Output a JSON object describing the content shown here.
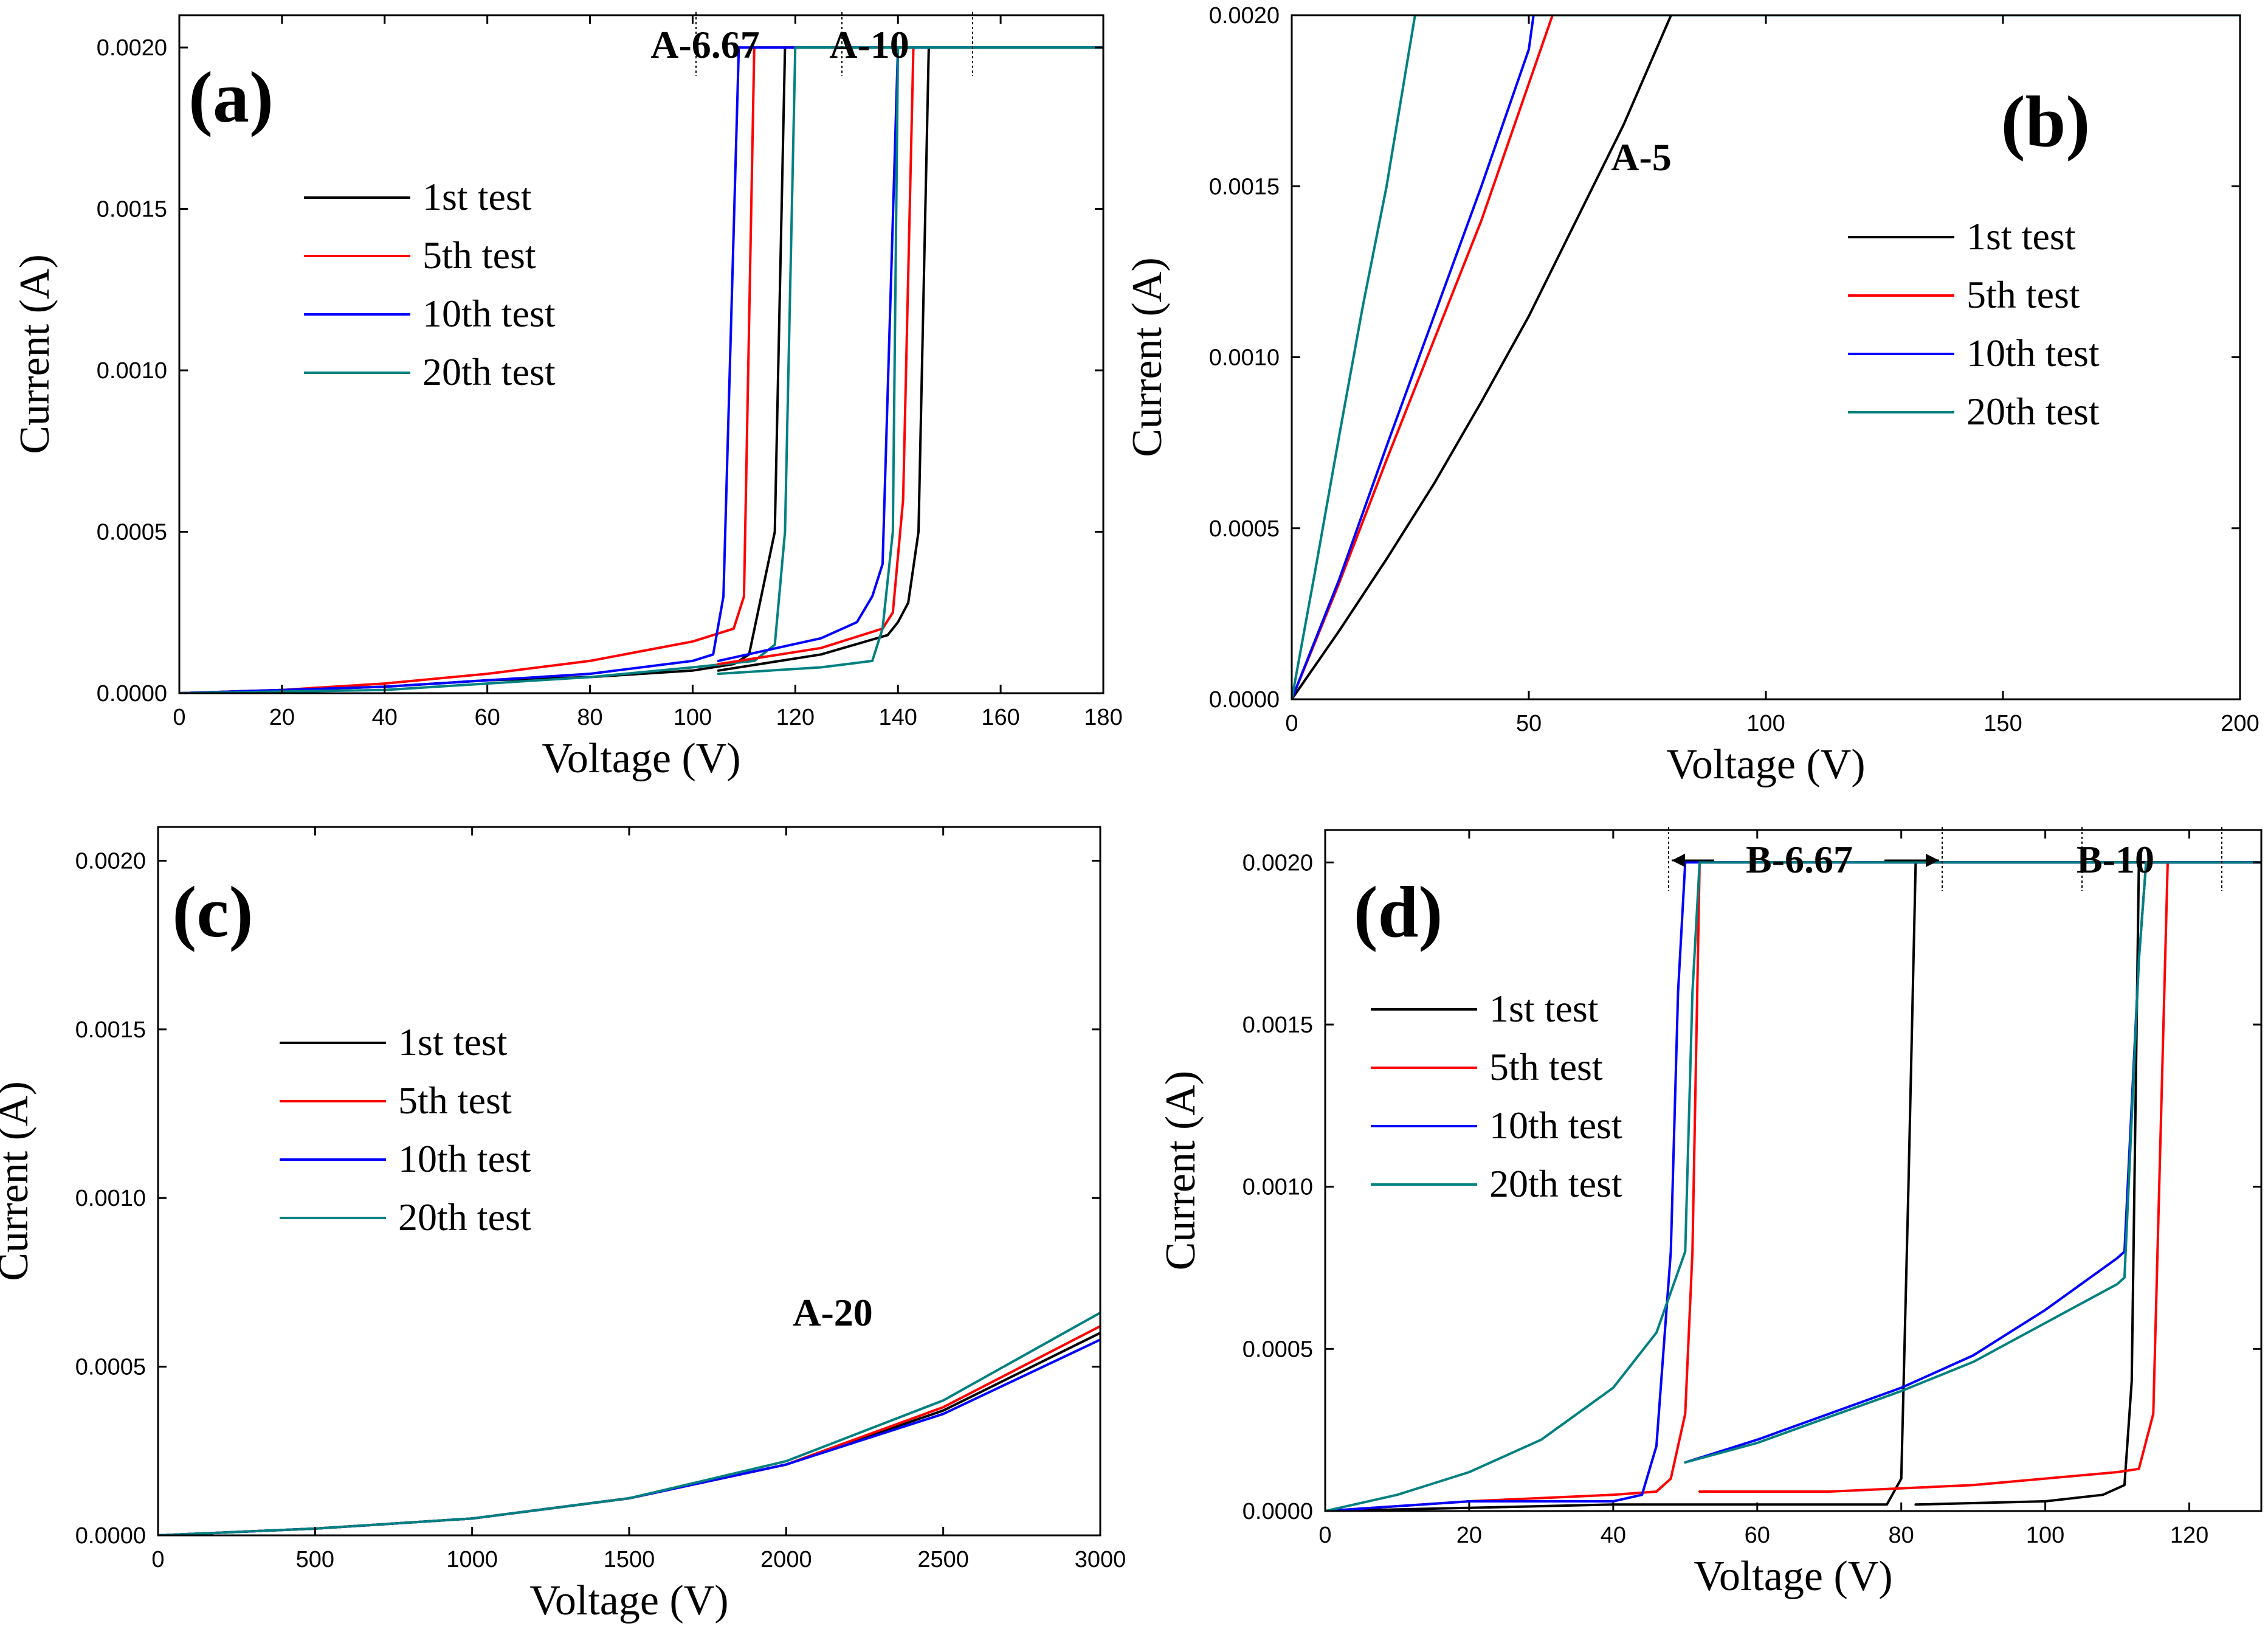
{
  "colors": {
    "1st": "#000000",
    "5th": "#ff0000",
    "10th": "#0000ff",
    "20th": "#008080"
  },
  "chart_data": [
    {
      "id": "a",
      "type": "line",
      "panel_label": "(a)",
      "xlabel": "Voltage (V)",
      "ylabel": "Current (A)",
      "xlim": [
        0,
        180
      ],
      "ylim": [
        0,
        0.0021
      ],
      "xticks": [
        "0",
        "20",
        "40",
        "60",
        "80",
        "100",
        "120",
        "140",
        "160",
        "180"
      ],
      "yticks": [
        "0.0000",
        "0.0005",
        "0.0010",
        "0.0015",
        "0.0020"
      ],
      "legend_position": "upper-left",
      "annotations": [
        {
          "text": "A-6.67",
          "x": 120,
          "y": 0.0021
        },
        {
          "text": "A-10",
          "x": 144,
          "y": 0.0021
        }
      ],
      "series": [
        {
          "name": "1st test",
          "color_key": "1st",
          "x": [
            0,
            20,
            40,
            60,
            80,
            100,
            108,
            111,
            116,
            118,
            180
          ],
          "y": [
            0,
            1e-05,
            2e-05,
            4e-05,
            5e-05,
            7e-05,
            9e-05,
            0.00012,
            0.0005,
            0.002,
            0.002
          ]
        },
        {
          "name": "5th test",
          "color_key": "5th",
          "x": [
            0,
            20,
            40,
            60,
            80,
            100,
            108,
            110,
            112,
            116,
            180
          ],
          "y": [
            0,
            1e-05,
            3e-05,
            6e-05,
            0.0001,
            0.00016,
            0.0002,
            0.0003,
            0.002,
            0.002,
            0.002
          ]
        },
        {
          "name": "10th test",
          "color_key": "10th",
          "x": [
            0,
            20,
            40,
            60,
            80,
            100,
            104,
            106,
            109,
            113,
            180
          ],
          "y": [
            0,
            1e-05,
            2e-05,
            4e-05,
            6e-05,
            0.0001,
            0.00012,
            0.0003,
            0.002,
            0.002,
            0.002
          ]
        },
        {
          "name": "20th test",
          "color_key": "20th",
          "x": [
            0,
            20,
            40,
            60,
            80,
            100,
            112,
            116,
            118,
            120,
            180
          ],
          "y": [
            0,
            5e-06,
            1e-05,
            3e-05,
            5e-05,
            8e-05,
            0.0001,
            0.00015,
            0.0005,
            0.002,
            0.002
          ]
        },
        {
          "name": "1st test",
          "color_key": "1st",
          "legend": false,
          "x": [
            105,
            125,
            138,
            140,
            142,
            144,
            146,
            180
          ],
          "y": [
            7e-05,
            0.00012,
            0.00018,
            0.00022,
            0.00028,
            0.0005,
            0.002,
            0.002
          ]
        },
        {
          "name": "5th test",
          "color_key": "5th",
          "legend": false,
          "x": [
            105,
            125,
            137,
            139,
            141,
            143,
            180
          ],
          "y": [
            9e-05,
            0.00014,
            0.0002,
            0.00025,
            0.0006,
            0.002,
            0.002
          ]
        },
        {
          "name": "10th test",
          "color_key": "10th",
          "legend": false,
          "x": [
            105,
            125,
            132,
            135,
            137,
            140,
            180
          ],
          "y": [
            0.0001,
            0.00017,
            0.00022,
            0.0003,
            0.0004,
            0.002,
            0.002
          ]
        },
        {
          "name": "20th test",
          "color_key": "20th",
          "legend": false,
          "x": [
            105,
            125,
            135,
            137,
            139,
            140,
            180
          ],
          "y": [
            6e-05,
            8e-05,
            0.0001,
            0.0002,
            0.0005,
            0.002,
            0.002
          ]
        }
      ]
    },
    {
      "id": "b",
      "type": "line",
      "panel_label": "(b)",
      "xlabel": "Voltage (V)",
      "ylabel": "Current (A)",
      "xlim": [
        0,
        200
      ],
      "ylim": [
        0,
        0.002
      ],
      "xticks": [
        "0",
        "50",
        "100",
        "150",
        "200"
      ],
      "yticks": [
        "0.0000",
        "0.0005",
        "0.0010",
        "0.0015",
        "0.0020"
      ],
      "legend_position": "right",
      "annotations": [
        {
          "text": "A-5",
          "x": 78,
          "y": 0.0017
        }
      ],
      "series": [
        {
          "name": "1st test",
          "color_key": "1st",
          "x": [
            0,
            10,
            20,
            30,
            40,
            50,
            60,
            70,
            80,
            200
          ],
          "y": [
            0,
            0.0002,
            0.00041,
            0.00063,
            0.00087,
            0.00112,
            0.0014,
            0.00168,
            0.002,
            0.002
          ]
        },
        {
          "name": "5th test",
          "color_key": "5th",
          "x": [
            0,
            10,
            20,
            30,
            40,
            50,
            55,
            200
          ],
          "y": [
            0,
            0.00034,
            0.0007,
            0.00105,
            0.0014,
            0.0018,
            0.002,
            0.002
          ]
        },
        {
          "name": "10th test",
          "color_key": "10th",
          "x": [
            0,
            10,
            20,
            30,
            40,
            50,
            51,
            200
          ],
          "y": [
            0,
            0.00035,
            0.00074,
            0.00112,
            0.0015,
            0.0019,
            0.002,
            0.002
          ]
        },
        {
          "name": "20th test",
          "color_key": "20th",
          "x": [
            0,
            5,
            10,
            15,
            20,
            26,
            200
          ],
          "y": [
            0,
            0.00038,
            0.00077,
            0.00115,
            0.0015,
            0.002,
            0.002
          ]
        }
      ]
    },
    {
      "id": "c",
      "type": "line",
      "panel_label": "(c)",
      "xlabel": "Voltage (V)",
      "ylabel": "Current (A)",
      "xlim": [
        0,
        3000
      ],
      "ylim": [
        0,
        0.0021
      ],
      "xticks": [
        "0",
        "500",
        "1000",
        "1500",
        "2000",
        "2500",
        "3000"
      ],
      "yticks": [
        "0.0000",
        "0.0005",
        "0.0010",
        "0.0015",
        "0.0020"
      ],
      "legend_position": "upper-left",
      "annotations": [
        {
          "text": "A-20",
          "x": 2300,
          "y": 0.00055
        }
      ],
      "series": [
        {
          "name": "1st test",
          "color_key": "1st",
          "x": [
            0,
            500,
            1000,
            1500,
            2000,
            2500,
            3000
          ],
          "y": [
            0,
            2e-05,
            5e-05,
            0.00011,
            0.00021,
            0.00037,
            0.0006
          ]
        },
        {
          "name": "5th test",
          "color_key": "5th",
          "x": [
            0,
            500,
            1000,
            1500,
            2000,
            2500,
            3000
          ],
          "y": [
            0,
            2e-05,
            5e-05,
            0.00011,
            0.00021,
            0.00038,
            0.00062
          ]
        },
        {
          "name": "10th test",
          "color_key": "10th",
          "x": [
            0,
            500,
            1000,
            1500,
            2000,
            2500,
            3000
          ],
          "y": [
            0,
            2e-05,
            5e-05,
            0.00011,
            0.00021,
            0.00036,
            0.00058
          ]
        },
        {
          "name": "20th test",
          "color_key": "20th",
          "x": [
            0,
            500,
            1000,
            1500,
            2000,
            2500,
            3000
          ],
          "y": [
            0,
            2e-05,
            5e-05,
            0.00011,
            0.00022,
            0.0004,
            0.00066
          ]
        }
      ]
    },
    {
      "id": "d",
      "type": "line",
      "panel_label": "(d)",
      "xlabel": "Voltage (V)",
      "ylabel": "Current (A)",
      "xlim": [
        0,
        130
      ],
      "ylim": [
        0,
        0.0021
      ],
      "xticks": [
        "0",
        "20",
        "40",
        "60",
        "80",
        "100",
        "120"
      ],
      "yticks": [
        "0.0000",
        "0.0005",
        "0.0010",
        "0.0015",
        "0.0020"
      ],
      "legend_position": "upper-left",
      "annotations": [
        {
          "text": "B-6.67",
          "x": 67,
          "y": 0.0021
        },
        {
          "text": "B-10",
          "x": 112,
          "y": 0.0021
        }
      ],
      "series": [
        {
          "name": "1st test",
          "color_key": "1st",
          "x": [
            0,
            20,
            40,
            60,
            78,
            80,
            81,
            82,
            130
          ],
          "y": [
            0,
            1e-05,
            2e-05,
            2e-05,
            2e-05,
            0.0001,
            0.001,
            0.002,
            0.002
          ]
        },
        {
          "name": "5th test",
          "color_key": "5th",
          "x": [
            0,
            20,
            40,
            46,
            48,
            50,
            51,
            52,
            130
          ],
          "y": [
            0,
            3e-05,
            5e-05,
            6e-05,
            0.0001,
            0.0003,
            0.0008,
            0.002,
            0.002
          ]
        },
        {
          "name": "10th test",
          "color_key": "10th",
          "x": [
            0,
            20,
            40,
            44,
            46,
            48,
            49,
            50,
            130
          ],
          "y": [
            0,
            3e-05,
            3e-05,
            5e-05,
            0.0002,
            0.0008,
            0.0016,
            0.002,
            0.002
          ]
        },
        {
          "name": "20th test",
          "color_key": "20th",
          "x": [
            0,
            10,
            20,
            30,
            40,
            46,
            50,
            51,
            52,
            130
          ],
          "y": [
            0,
            5e-05,
            0.00012,
            0.00022,
            0.00038,
            0.00055,
            0.0008,
            0.0016,
            0.002,
            0.002
          ]
        },
        {
          "name": "1st test",
          "color_key": "1st",
          "legend": false,
          "x": [
            82,
            100,
            108,
            111,
            112,
            113,
            130
          ],
          "y": [
            2e-05,
            3e-05,
            5e-05,
            8e-05,
            0.0004,
            0.002,
            0.002
          ]
        },
        {
          "name": "5th test",
          "color_key": "5th",
          "legend": false,
          "x": [
            52,
            70,
            90,
            110,
            113,
            115,
            117,
            130
          ],
          "y": [
            6e-05,
            6e-05,
            8e-05,
            0.00012,
            0.00013,
            0.0003,
            0.002,
            0.002
          ]
        },
        {
          "name": "10th test",
          "color_key": "10th",
          "legend": false,
          "x": [
            50,
            60,
            70,
            80,
            90,
            100,
            110,
            111,
            113,
            114,
            130
          ],
          "y": [
            0.00015,
            0.00022,
            0.0003,
            0.00038,
            0.00048,
            0.00062,
            0.00078,
            0.0008,
            0.0017,
            0.002,
            0.002
          ]
        },
        {
          "name": "20th test",
          "color_key": "20th",
          "legend": false,
          "x": [
            50,
            60,
            70,
            80,
            90,
            100,
            110,
            111,
            113,
            114,
            130
          ],
          "y": [
            0.00015,
            0.00021,
            0.00029,
            0.00037,
            0.00046,
            0.00058,
            0.0007,
            0.00072,
            0.0017,
            0.002,
            0.002
          ]
        }
      ]
    }
  ]
}
